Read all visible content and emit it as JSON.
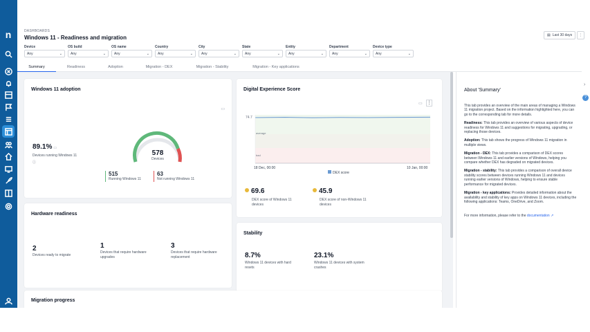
{
  "header": {
    "breadcrumb": "DASHBOARDS",
    "title": "Windows 11 - Readiness and migration",
    "last_days": "Last 30 days",
    "more": "⋮"
  },
  "filters": [
    {
      "label": "Device",
      "value": "Any"
    },
    {
      "label": "OS build",
      "value": "Any"
    },
    {
      "label": "OS name",
      "value": "Any"
    },
    {
      "label": "Country",
      "value": "Any"
    },
    {
      "label": "City",
      "value": "Any"
    },
    {
      "label": "State",
      "value": "Any"
    },
    {
      "label": "Entity",
      "value": "Any"
    },
    {
      "label": "Department",
      "value": "Any"
    },
    {
      "label": "Device type",
      "value": "Any"
    }
  ],
  "tabs": [
    {
      "label": "Summary",
      "active": true
    },
    {
      "label": "Readiness"
    },
    {
      "label": "Adoption"
    },
    {
      "label": "Migration - DEX"
    },
    {
      "label": "Migration - Stability"
    },
    {
      "label": "Migration - Key applications"
    }
  ],
  "adoption": {
    "title": "Windows 11 adoption",
    "percent": "89.1%",
    "percent_label": "Devices running Windows 11",
    "total": "578",
    "total_label": "Devices",
    "running": "515",
    "running_label": "Running Windows 11",
    "not_running": "63",
    "not_running_label": "Not running Windows 11"
  },
  "dex": {
    "title": "Digital Experience Score",
    "y_label": "74.7",
    "band1": "average",
    "band2": "bad",
    "x_start": "18 Dec, 00:00",
    "x_end": "10 Jan, 00:00",
    "legend": "DEX score",
    "win11_score": "69.6",
    "win11_label": "DEX score of Windows 11 devices",
    "other_score": "45.9",
    "other_label": "DEX score of non-Windows 11 devices"
  },
  "hardware": {
    "title": "Hardware readiness",
    "ready": "2",
    "ready_label": "Devices ready to migrate",
    "upgrade": "1",
    "upgrade_label": "Devices that require hardware upgrades",
    "replace": "3",
    "replace_label": "Devices that require hardware replacement"
  },
  "stability": {
    "title": "Stability",
    "hard_resets": "8.7%",
    "hard_resets_label": "Windows 11 devices with hard resets",
    "crashes": "23.1%",
    "crashes_label": "Windows 11 devices with system crashes"
  },
  "migration": {
    "title": "Migration progress"
  },
  "about": {
    "title": "About 'Summary'",
    "intro": "This tab provides an overview of the main areas of managing a Windows 11 migration project. Based on the information highlighted here, you can go to the corresponding tab for more details.",
    "readiness_h": "Readiness:",
    "readiness": "This tab provides an overview of various aspects of device readiness for Windows 11 and suggestions for migrating, upgrading, or replacing those devices.",
    "adoption_h": "Adoption:",
    "adoption": "This tab shows the progress of Windows 11 migration in multiple views.",
    "dex_h": "Migration - DEX:",
    "dex": "This tab provides a comparison of DEX scores between Windows 11 and earlier versions of Windows, helping you compare whether DEX has degraded on migrated devices.",
    "stab_h": "Migration - stability:",
    "stab": "This tab provides a comparison of overall device stability scores between devices running Windows 11 and devices running earlier versions of Windows, helping to ensure stable performance for migrated devices.",
    "apps_h": "Migration - key applications:",
    "apps": "Provides detailed information about the availability and stability of key apps on Windows 11 devices, including the following applications: Teams, OneDrive, and Zoom.",
    "more": "For more information, please refer to the",
    "link": "documentation"
  },
  "colors": {
    "rail": "#0f5c9c",
    "accent": "#2563eb",
    "green": "#5fb87a",
    "red": "#e05252",
    "gold": "#e8b93a"
  }
}
